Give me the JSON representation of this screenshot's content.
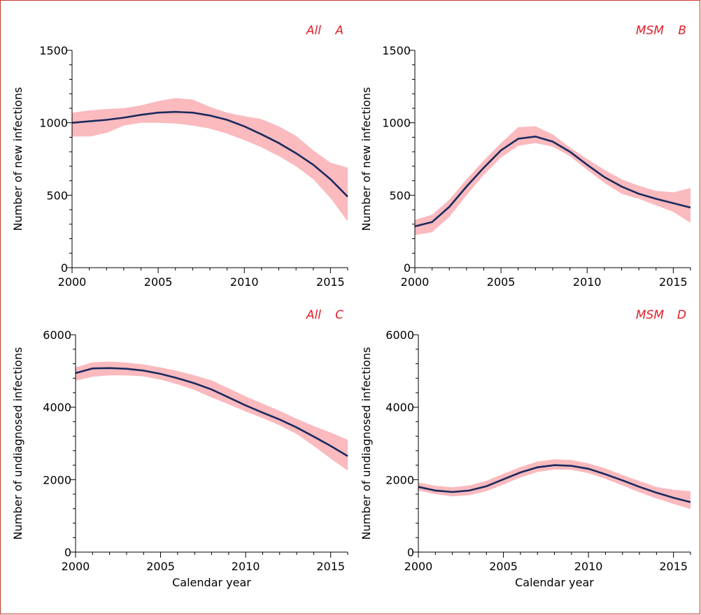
{
  "chart_data": [
    {
      "type": "line",
      "panel_group": "All",
      "panel_letter": "A",
      "xlabel": "",
      "ylabel": "Number of new infections",
      "xlim": [
        2000,
        2016
      ],
      "ylim": [
        0,
        1500
      ],
      "xticks": [
        2000,
        2005,
        2010,
        2015
      ],
      "yticks": [
        0,
        500,
        1000,
        1500
      ],
      "x": [
        2000,
        2001,
        2002,
        2003,
        2004,
        2005,
        2006,
        2007,
        2008,
        2009,
        2010,
        2011,
        2012,
        2013,
        2014,
        2015,
        2016
      ],
      "series": [
        {
          "values": [
            1000,
            1010,
            1020,
            1035,
            1055,
            1070,
            1075,
            1070,
            1050,
            1020,
            975,
            920,
            860,
            790,
            710,
            610,
            490
          ],
          "lower": [
            905,
            905,
            930,
            980,
            1000,
            1000,
            995,
            980,
            960,
            925,
            880,
            830,
            770,
            700,
            610,
            480,
            320
          ],
          "upper": [
            1070,
            1085,
            1095,
            1100,
            1120,
            1150,
            1170,
            1160,
            1110,
            1070,
            1045,
            1025,
            975,
            910,
            810,
            725,
            690
          ]
        }
      ]
    },
    {
      "type": "line",
      "panel_group": "MSM",
      "panel_letter": "B",
      "xlabel": "",
      "ylabel": "Number of new infections",
      "xlim": [
        2000,
        2016
      ],
      "ylim": [
        0,
        1500
      ],
      "xticks": [
        2000,
        2005,
        2010,
        2015
      ],
      "yticks": [
        0,
        500,
        1000,
        1500
      ],
      "x": [
        2000,
        2001,
        2002,
        2003,
        2004,
        2005,
        2006,
        2007,
        2008,
        2009,
        2010,
        2011,
        2012,
        2013,
        2014,
        2015,
        2016
      ],
      "series": [
        {
          "values": [
            285,
            315,
            420,
            560,
            690,
            810,
            890,
            905,
            870,
            800,
            710,
            625,
            560,
            510,
            475,
            445,
            415
          ],
          "lower": [
            225,
            245,
            350,
            500,
            640,
            760,
            840,
            860,
            835,
            770,
            675,
            585,
            510,
            475,
            430,
            385,
            310
          ],
          "upper": [
            330,
            365,
            470,
            610,
            740,
            860,
            970,
            975,
            920,
            830,
            750,
            675,
            610,
            565,
            530,
            520,
            550
          ]
        }
      ]
    },
    {
      "type": "line",
      "panel_group": "All",
      "panel_letter": "C",
      "xlabel": "Calendar year",
      "ylabel": "Number of undiagnosed infections",
      "xlim": [
        2000,
        2016
      ],
      "ylim": [
        0,
        6000
      ],
      "xticks": [
        2000,
        2005,
        2010,
        2015
      ],
      "yticks": [
        0,
        2000,
        4000,
        6000
      ],
      "x": [
        2000,
        2001,
        2002,
        2003,
        2004,
        2005,
        2006,
        2007,
        2008,
        2009,
        2010,
        2011,
        2012,
        2013,
        2014,
        2015,
        2016
      ],
      "series": [
        {
          "values": [
            4940,
            5070,
            5080,
            5060,
            5010,
            4920,
            4800,
            4660,
            4490,
            4270,
            4050,
            3850,
            3660,
            3440,
            3190,
            2930,
            2650
          ],
          "lower": [
            4730,
            4840,
            4880,
            4880,
            4850,
            4760,
            4630,
            4470,
            4270,
            4080,
            3880,
            3700,
            3500,
            3260,
            2930,
            2580,
            2250
          ],
          "upper": [
            5100,
            5240,
            5260,
            5230,
            5180,
            5100,
            5000,
            4880,
            4740,
            4520,
            4300,
            4100,
            3900,
            3680,
            3480,
            3300,
            3100
          ]
        }
      ]
    },
    {
      "type": "line",
      "panel_group": "MSM",
      "panel_letter": "D",
      "xlabel": "Calendar year",
      "ylabel": "Number of undiagnosed infections",
      "xlim": [
        2000,
        2016
      ],
      "ylim": [
        0,
        6000
      ],
      "xticks": [
        2000,
        2005,
        2010,
        2015
      ],
      "yticks": [
        0,
        2000,
        4000,
        6000
      ],
      "x": [
        2000,
        2001,
        2002,
        2003,
        2004,
        2005,
        2006,
        2007,
        2008,
        2009,
        2010,
        2011,
        2012,
        2013,
        2014,
        2015,
        2016
      ],
      "series": [
        {
          "values": [
            1800,
            1700,
            1660,
            1700,
            1820,
            2010,
            2200,
            2340,
            2400,
            2380,
            2300,
            2150,
            1980,
            1800,
            1640,
            1500,
            1380
          ],
          "lower": [
            1700,
            1600,
            1540,
            1570,
            1680,
            1870,
            2060,
            2210,
            2280,
            2270,
            2180,
            2020,
            1840,
            1650,
            1480,
            1330,
            1190
          ],
          "upper": [
            1920,
            1830,
            1790,
            1840,
            1970,
            2160,
            2350,
            2500,
            2560,
            2540,
            2450,
            2310,
            2130,
            1960,
            1800,
            1720,
            1680
          ]
        }
      ]
    }
  ]
}
